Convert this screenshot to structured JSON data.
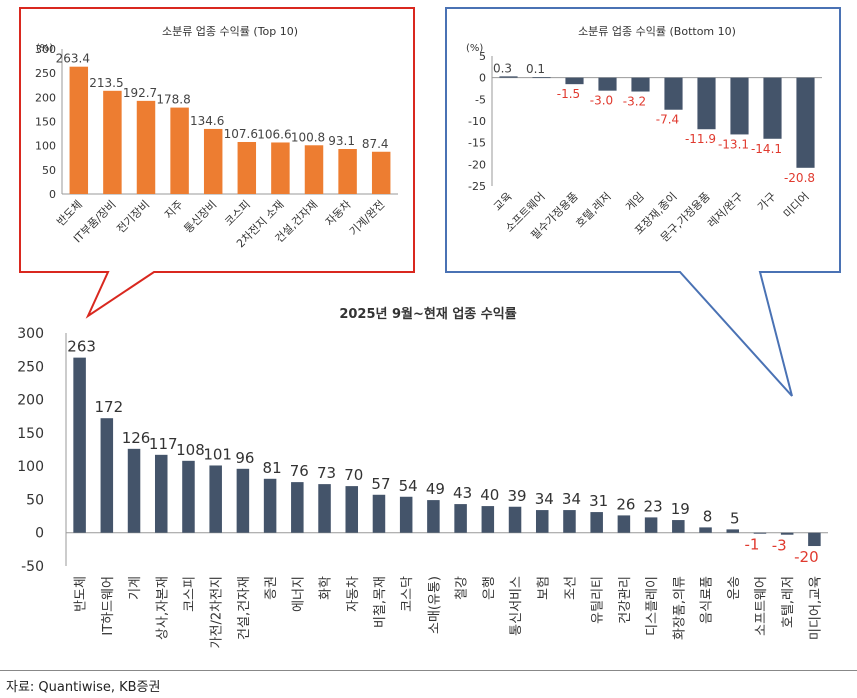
{
  "colors": {
    "orange": "#ED7D31",
    "navy": "#44546A",
    "red_box": "#D9281F",
    "blue_box": "#4A72B4",
    "negative_label": "#E03A2F"
  },
  "chart_data": [
    {
      "type": "bar",
      "title": "소분류 업종 수익률 (Top 10)",
      "ylabel": "(%)",
      "ylim": [
        0,
        300
      ],
      "yticks": [
        0,
        50,
        100,
        150,
        200,
        250,
        300
      ],
      "categories": [
        "반도체",
        "IT부품/장비",
        "전기장비",
        "지주",
        "통신장비",
        "코스피",
        "2차전지 소재",
        "건설,건자재",
        "자동차",
        "기계/완전"
      ],
      "values": [
        263.4,
        213.5,
        192.7,
        178.8,
        134.6,
        107.6,
        106.6,
        100.8,
        93.1,
        87.4
      ],
      "value_labels": [
        "263.4",
        "213.5",
        "192.7",
        "178.8",
        "134.6",
        "107.6",
        "106.6",
        "100.8",
        "93.1",
        "87.4"
      ],
      "color": "#ED7D31",
      "grid": false
    },
    {
      "type": "bar",
      "title": "소분류 업종 수익률 (Bottom 10)",
      "ylabel": "(%)",
      "ylim": [
        -25,
        5
      ],
      "yticks": [
        5,
        0,
        -5,
        -10,
        -15,
        -20,
        -25
      ],
      "categories": [
        "교육",
        "소프트웨어",
        "필수가정용품",
        "호텔,레저",
        "게임",
        "포장재,종이",
        "문구,가정용품",
        "레저/완구",
        "가구",
        "미디어"
      ],
      "values": [
        0.3,
        0.1,
        -1.5,
        -3.0,
        -3.2,
        -7.4,
        -11.9,
        -13.1,
        -14.1,
        -20.8
      ],
      "value_labels": [
        "0.3",
        "0.1",
        "-1.5",
        "-3.0",
        "-3.2",
        "-7.4",
        "-11.9",
        "-13.1",
        "-14.1",
        "-20.8"
      ],
      "color": "#44546A",
      "grid": false
    },
    {
      "type": "bar",
      "title": "2025년 9월~현재 업종 수익률",
      "ylim": [
        -50,
        300
      ],
      "yticks": [
        300,
        250,
        200,
        150,
        100,
        50,
        0,
        -50
      ],
      "categories": [
        "반도체",
        "IT하드웨어",
        "기계",
        "상사,자본재",
        "코스피",
        "가전/2차전지",
        "건설,건자재",
        "증권",
        "에너지",
        "화학",
        "자동차",
        "비철,목재",
        "코스닥",
        "소매(유통)",
        "철강",
        "은행",
        "통신서비스",
        "보험",
        "조선",
        "유틸리티",
        "건강관리",
        "디스플레이",
        "화장품,의류",
        "음식료품",
        "운송",
        "소프트웨어",
        "호텔,레저",
        "미디어,교육"
      ],
      "values": [
        263,
        172,
        126,
        117,
        108,
        101,
        96,
        81,
        76,
        73,
        70,
        57,
        54,
        49,
        43,
        40,
        39,
        34,
        34,
        31,
        26,
        23,
        19,
        8,
        5,
        -1,
        -3,
        -20
      ],
      "value_labels": [
        "263",
        "172",
        "126",
        "117",
        "108",
        "101",
        "96",
        "81",
        "76",
        "73",
        "70",
        "57",
        "54",
        "49",
        "43",
        "40",
        "39",
        "34",
        "34",
        "31",
        "26",
        "23",
        "19",
        "8",
        "5",
        "-1",
        "-3",
        "-20"
      ],
      "color": "#44546A",
      "grid": false
    }
  ],
  "source": "자료: Quantiwise, KB증권"
}
